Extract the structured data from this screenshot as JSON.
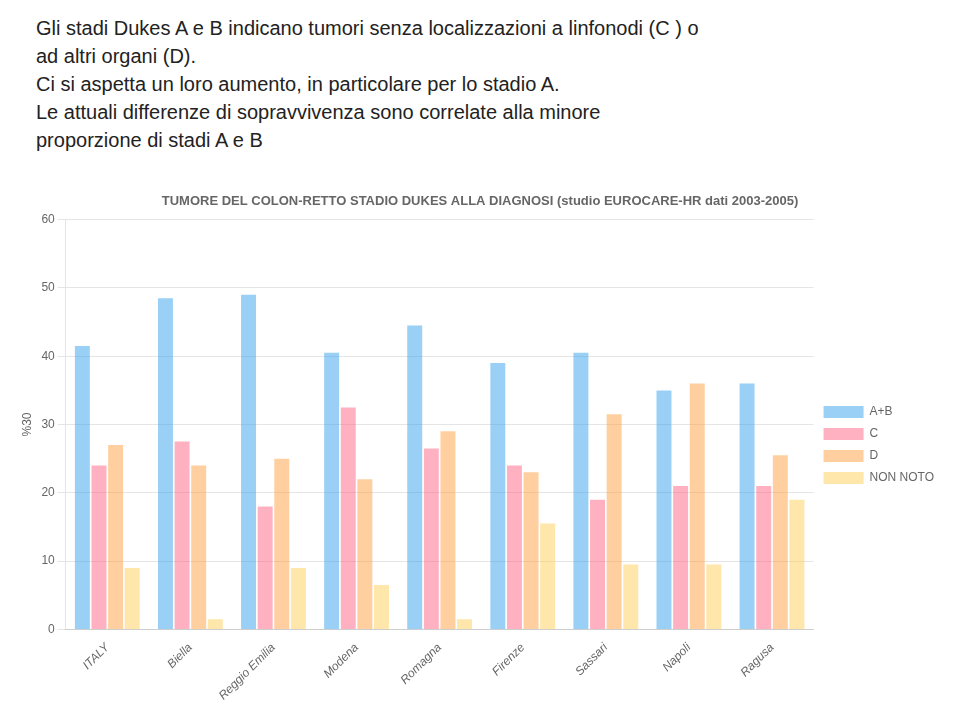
{
  "chart_data": {
    "type": "bar",
    "title": "TUMORE DEL COLON-RETTO STADIO DUKES ALLA DIAGNOSI (studio EUROCARE-HR dati 2003-2005)",
    "annotations": [
      "Gli stadi Dukes A e B indicano tumori senza localizzazioni a linfonodi (C ) o",
      "ad altri organi (D).",
      "Ci si aspetta un loro aumento, in particolare per lo stadio A.",
      "Le attuali differenze di sopravvivenza sono correlate alla minore",
      "proporzione di stadi A e B"
    ],
    "ylabel": "%30",
    "categories": [
      "ITALY",
      "Biella",
      "Reggio Emilia",
      "Modena",
      "Romagna",
      "Firenze",
      "Sassari",
      "Napoli",
      "Ragusa"
    ],
    "series": [
      {
        "name": "A+B",
        "values": [
          41.5,
          48.5,
          49.0,
          40.5,
          44.5,
          39.0,
          40.5,
          35.0,
          36.0
        ]
      },
      {
        "name": "C",
        "values": [
          24.0,
          27.5,
          18.0,
          32.5,
          26.5,
          24.0,
          19.0,
          21.0,
          21.0
        ]
      },
      {
        "name": "D",
        "values": [
          27.0,
          24.0,
          25.0,
          22.0,
          29.0,
          23.0,
          31.5,
          36.0,
          25.5
        ]
      },
      {
        "name": "NON NOTO",
        "values": [
          9.0,
          1.5,
          9.0,
          6.5,
          1.5,
          15.5,
          9.5,
          9.5,
          19.0
        ]
      }
    ],
    "ylim": [
      0,
      60
    ],
    "yticks": [
      0,
      10,
      20,
      30,
      40,
      50,
      60
    ],
    "grid": true,
    "legend": "right"
  }
}
